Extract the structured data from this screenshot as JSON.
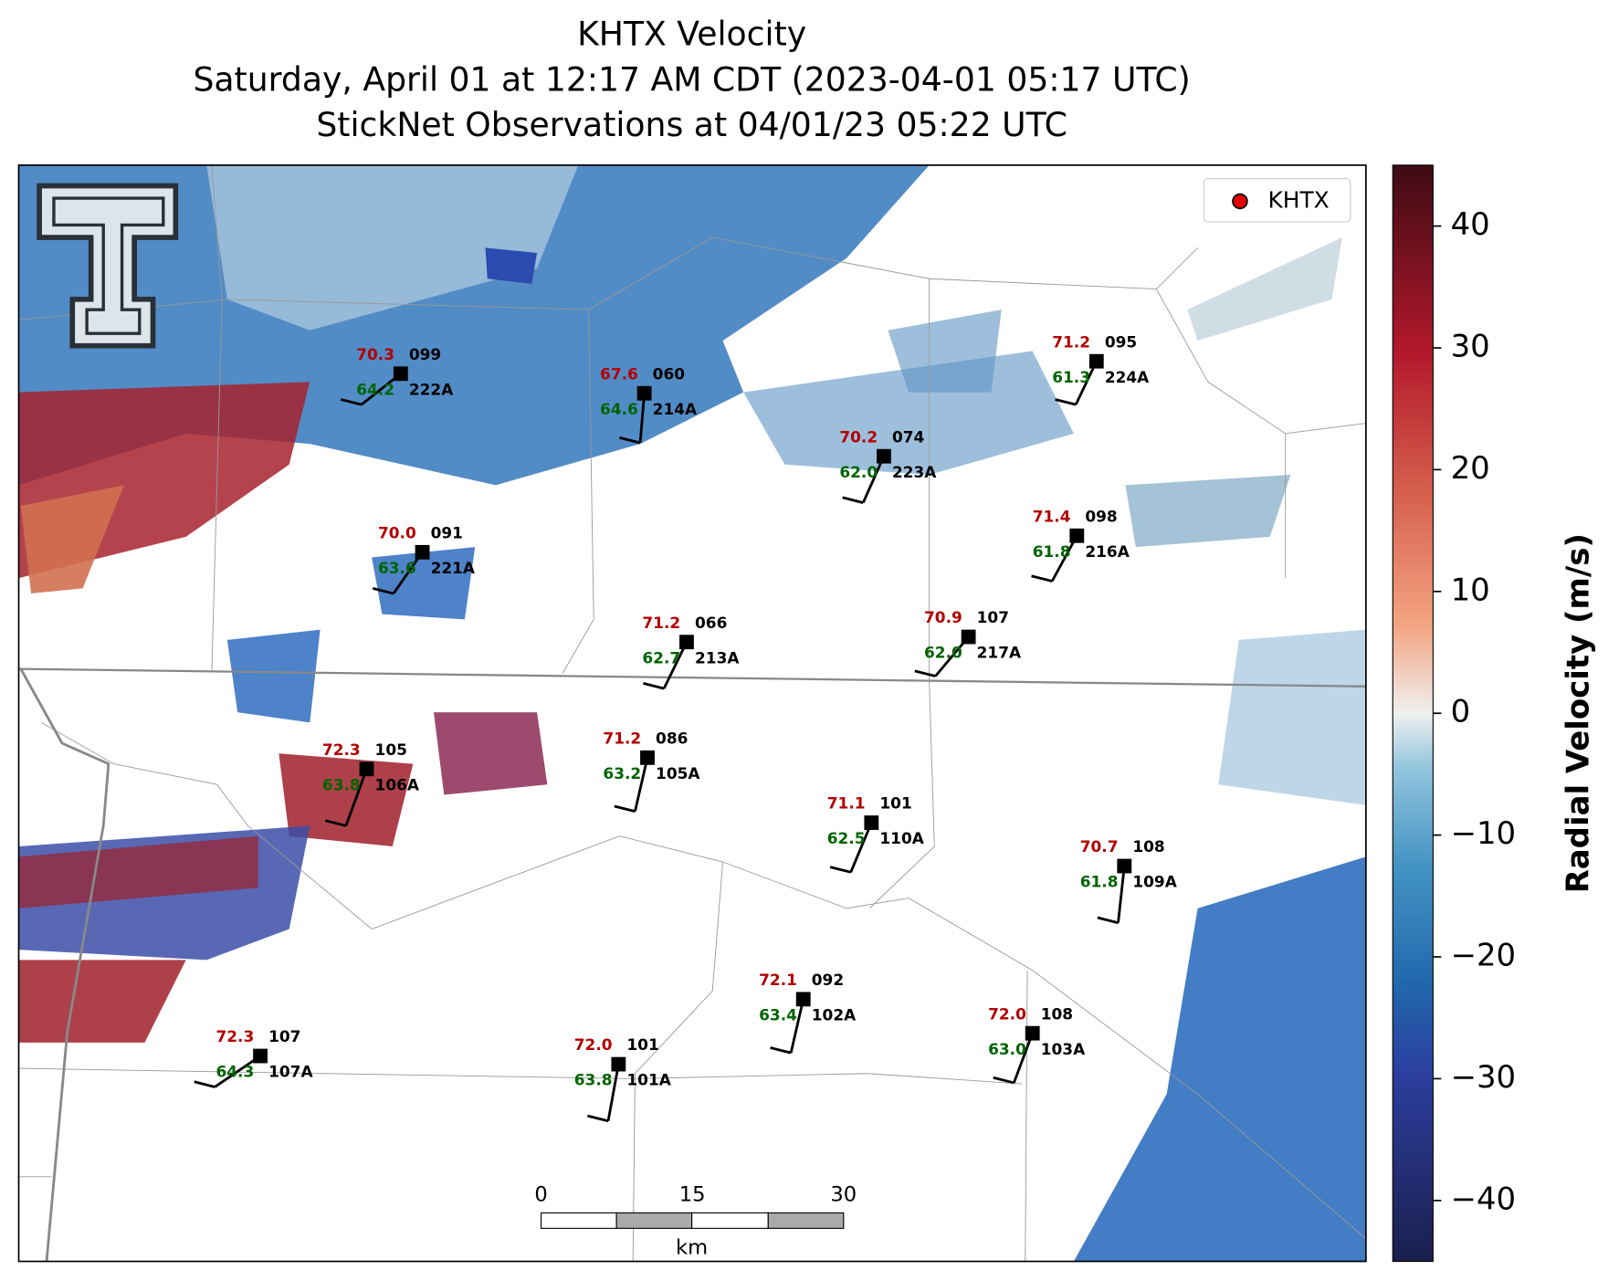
{
  "header": {
    "title": "KHTX Velocity",
    "subtitle": "Saturday, April 01 at 12:17 AM CDT (2023-04-01 05:17 UTC)",
    "observations": "StickNet Observations at 04/01/23 05:22 UTC"
  },
  "legend": {
    "label": "KHTX"
  },
  "colorbar": {
    "label": "Radial Velocity (m/s)",
    "vlim": [
      -45,
      45
    ],
    "ticks": [
      {
        "value": -40,
        "label": "−40"
      },
      {
        "value": -30,
        "label": "−30"
      },
      {
        "value": -20,
        "label": "−20"
      },
      {
        "value": -10,
        "label": "−10"
      },
      0,
      10,
      20,
      30,
      40
    ]
  },
  "scale_bar": {
    "ticks": [
      0,
      15,
      30
    ],
    "unit": "km"
  },
  "stations": [
    {
      "id": "222A",
      "temperature": "70.3",
      "dewpoint": "64.2",
      "code": "099"
    },
    {
      "id": "214A",
      "temperature": "67.6",
      "dewpoint": "64.6",
      "code": "060"
    },
    {
      "id": "224A",
      "temperature": "71.2",
      "dewpoint": "61.3",
      "code": "095"
    },
    {
      "id": "223A",
      "temperature": "70.2",
      "dewpoint": "62.0",
      "code": "074"
    },
    {
      "id": "216A",
      "temperature": "71.4",
      "dewpoint": "61.8",
      "code": "098"
    },
    {
      "id": "221A",
      "temperature": "70.0",
      "dewpoint": "63.6",
      "code": "091"
    },
    {
      "id": "213A",
      "temperature": "71.2",
      "dewpoint": "62.7",
      "code": "066"
    },
    {
      "id": "217A",
      "temperature": "70.9",
      "dewpoint": "62.0",
      "code": "107"
    },
    {
      "id": "106A",
      "temperature": "72.3",
      "dewpoint": "63.8",
      "code": "105"
    },
    {
      "id": "105A",
      "temperature": "71.2",
      "dewpoint": "63.2",
      "code": "086"
    },
    {
      "id": "110A",
      "temperature": "71.1",
      "dewpoint": "62.5",
      "code": "101"
    },
    {
      "id": "109A",
      "temperature": "70.7",
      "dewpoint": "61.8",
      "code": "108"
    },
    {
      "id": "102A",
      "temperature": "72.1",
      "dewpoint": "63.4",
      "code": "092"
    },
    {
      "id": "103A",
      "temperature": "72.0",
      "dewpoint": "63.0",
      "code": "108"
    },
    {
      "id": "107A",
      "temperature": "72.3",
      "dewpoint": "64.3",
      "code": "107"
    },
    {
      "id": "101A",
      "temperature": "72.0",
      "dewpoint": "63.8",
      "code": "101"
    }
  ]
}
